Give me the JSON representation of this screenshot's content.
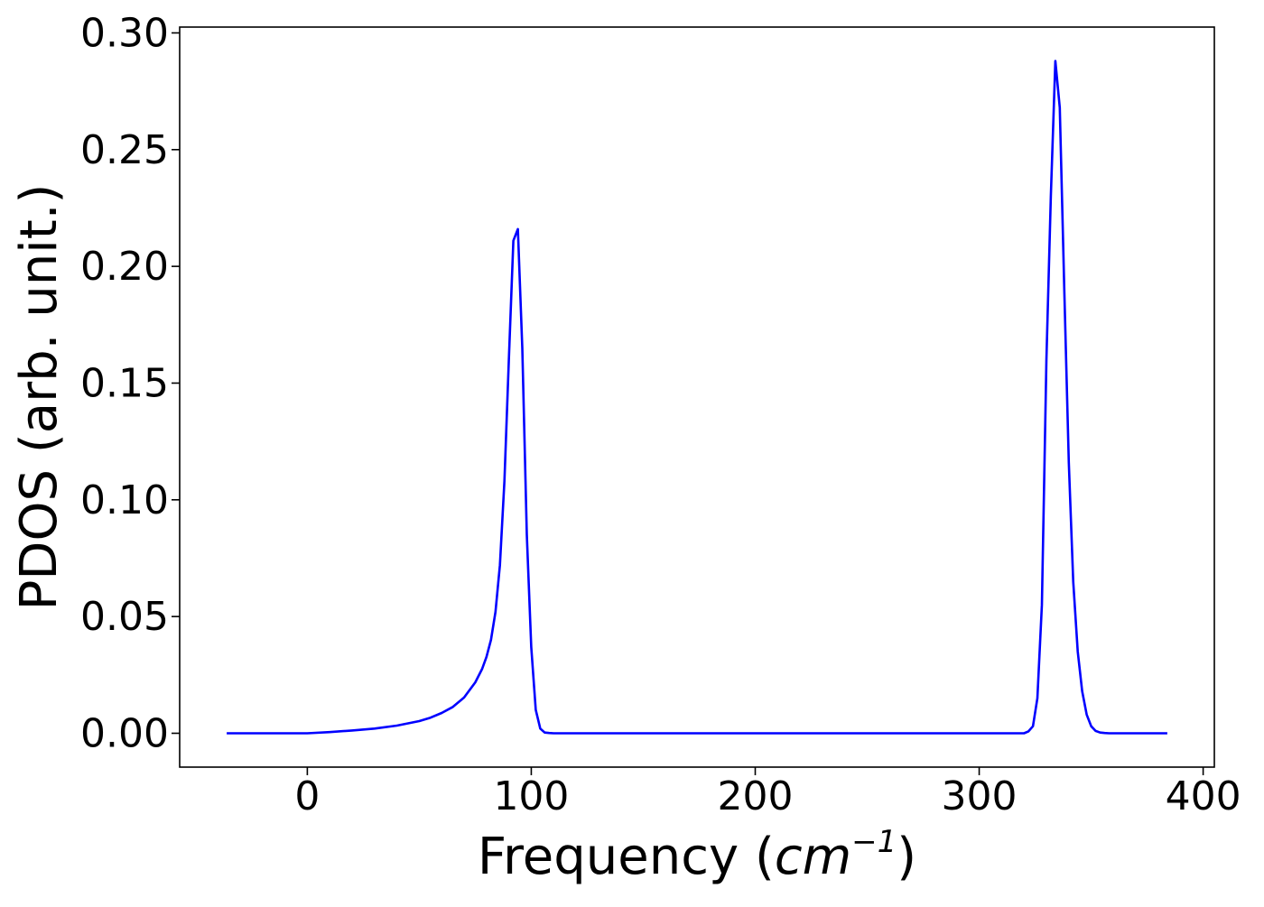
{
  "chart_data": {
    "type": "line",
    "title": "",
    "xlabel": {
      "prefix": "Frequency (",
      "math": "cm",
      "sup": "−1",
      "suffix": ")"
    },
    "ylabel": "PDOS (arb. unit.)",
    "xlim": [
      -57,
      405
    ],
    "ylim": [
      -0.0145,
      0.3025
    ],
    "xticks": [
      0,
      100,
      200,
      300,
      400
    ],
    "xtick_labels": [
      "0",
      "100",
      "200",
      "300",
      "400"
    ],
    "yticks": [
      0.0,
      0.05,
      0.1,
      0.15,
      0.2,
      0.25,
      0.3
    ],
    "ytick_labels": [
      "0.00",
      "0.05",
      "0.10",
      "0.15",
      "0.20",
      "0.25",
      "0.30"
    ],
    "grid": false,
    "legend": "none",
    "series": [
      {
        "color": "#0000ff",
        "x": [
          -36,
          -20,
          0,
          10,
          20,
          30,
          40,
          50,
          55,
          60,
          65,
          70,
          75,
          78,
          80,
          82,
          84,
          86,
          88,
          90,
          92,
          94,
          96,
          98,
          100,
          102,
          104,
          106,
          108,
          110,
          115,
          120,
          150,
          200,
          250,
          300,
          320,
          322,
          324,
          326,
          328,
          330,
          332,
          334,
          336,
          338,
          340,
          342,
          344,
          346,
          348,
          350,
          352,
          354,
          356,
          358,
          360,
          370,
          384
        ],
        "y": [
          0.0,
          0.0,
          0.0,
          0.0005,
          0.0012,
          0.002,
          0.0033,
          0.0052,
          0.0067,
          0.0087,
          0.0113,
          0.0153,
          0.0218,
          0.0275,
          0.0327,
          0.04,
          0.052,
          0.072,
          0.108,
          0.16,
          0.211,
          0.216,
          0.165,
          0.085,
          0.037,
          0.01,
          0.002,
          0.0003,
          0.0001,
          0.0,
          0.0,
          0.0,
          0.0,
          0.0,
          0.0,
          0.0,
          0.0,
          0.0008,
          0.003,
          0.015,
          0.055,
          0.16,
          0.23,
          0.288,
          0.268,
          0.19,
          0.116,
          0.065,
          0.035,
          0.018,
          0.008,
          0.003,
          0.001,
          0.0003,
          0.0001,
          0.0,
          0.0,
          0.0,
          0.0
        ]
      }
    ]
  }
}
